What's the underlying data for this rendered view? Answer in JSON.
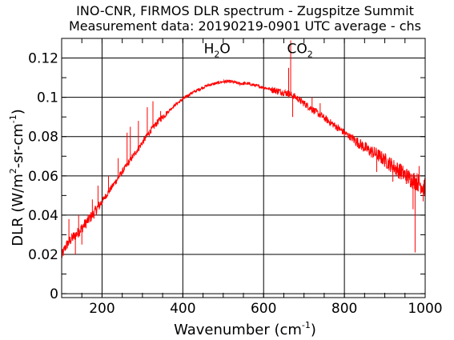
{
  "chart_data": {
    "type": "line",
    "title": "INO-CNR, FIRMOS DLR spectrum - Zugspitze Summit",
    "subtitle": "Measurement data: 20190219-0901 UTC average - chs",
    "xlabel": {
      "base": "Wavenumber (cm",
      "sup": "-1",
      "end": ")"
    },
    "ylabel": {
      "base": "DLR (W/m",
      "sup1": "2",
      "mid": "-sr-cm",
      "sup2": "-1",
      "end": ")"
    },
    "xlim": [
      100,
      1000
    ],
    "ylim": [
      -0.002,
      0.13
    ],
    "xticks": [
      200,
      400,
      600,
      800,
      1000
    ],
    "yticks": [
      0,
      0.02,
      0.04,
      0.06,
      0.08,
      0.1,
      0.12
    ],
    "xtick_labels": [
      "200",
      "400",
      "600",
      "800",
      "1000"
    ],
    "ytick_labels": [
      "0",
      "0.02",
      "0.04",
      "0.06",
      "0.08",
      "0.1",
      "0.12"
    ],
    "grid": true,
    "annotations": [
      {
        "base": "H",
        "sub": "2",
        "end": "O",
        "x": 485,
        "y": 0.1225
      },
      {
        "base": "CO",
        "sub": "2",
        "end": "",
        "x": 690,
        "y": 0.1225
      }
    ],
    "series": [
      {
        "color": "#ff0000",
        "x": [
          100,
          110,
          120,
          140,
          160,
          180,
          200,
          220,
          240,
          260,
          280,
          300,
          320,
          340,
          360,
          380,
          400,
          420,
          440,
          460,
          480,
          500,
          520,
          540,
          560,
          580,
          600,
          620,
          640,
          660,
          670,
          680,
          700,
          720,
          740,
          760,
          780,
          800,
          820,
          840,
          860,
          880,
          900,
          920,
          940,
          960,
          980,
          1000
        ],
        "y": [
          0.019,
          0.024,
          0.027,
          0.031,
          0.036,
          0.041,
          0.047,
          0.053,
          0.059,
          0.065,
          0.071,
          0.077,
          0.083,
          0.088,
          0.092,
          0.096,
          0.099,
          0.102,
          0.104,
          0.106,
          0.107,
          0.108,
          0.108,
          0.107,
          0.107,
          0.106,
          0.105,
          0.104,
          0.103,
          0.102,
          0.101,
          0.1,
          0.097,
          0.094,
          0.091,
          0.088,
          0.085,
          0.082,
          0.079,
          0.076,
          0.073,
          0.071,
          0.068,
          0.065,
          0.062,
          0.059,
          0.057,
          0.054
        ]
      }
    ],
    "spikes": [
      {
        "x": 118,
        "y": 0.038
      },
      {
        "x": 126,
        "y": 0.03
      },
      {
        "x": 134,
        "y": 0.02
      },
      {
        "x": 142,
        "y": 0.04
      },
      {
        "x": 150,
        "y": 0.025
      },
      {
        "x": 176,
        "y": 0.048
      },
      {
        "x": 190,
        "y": 0.055
      },
      {
        "x": 216,
        "y": 0.06
      },
      {
        "x": 240,
        "y": 0.069
      },
      {
        "x": 262,
        "y": 0.082
      },
      {
        "x": 270,
        "y": 0.085
      },
      {
        "x": 290,
        "y": 0.088
      },
      {
        "x": 312,
        "y": 0.095
      },
      {
        "x": 326,
        "y": 0.098
      },
      {
        "x": 345,
        "y": 0.093
      },
      {
        "x": 667,
        "y": 0.129
      },
      {
        "x": 662,
        "y": 0.115
      },
      {
        "x": 672,
        "y": 0.09
      },
      {
        "x": 720,
        "y": 0.1
      },
      {
        "x": 740,
        "y": 0.097
      },
      {
        "x": 800,
        "y": 0.08
      },
      {
        "x": 860,
        "y": 0.075
      },
      {
        "x": 880,
        "y": 0.062
      },
      {
        "x": 900,
        "y": 0.07
      },
      {
        "x": 920,
        "y": 0.057
      },
      {
        "x": 940,
        "y": 0.066
      },
      {
        "x": 960,
        "y": 0.062
      },
      {
        "x": 970,
        "y": 0.043
      },
      {
        "x": 975,
        "y": 0.021
      },
      {
        "x": 985,
        "y": 0.065
      },
      {
        "x": 995,
        "y": 0.047
      }
    ]
  }
}
